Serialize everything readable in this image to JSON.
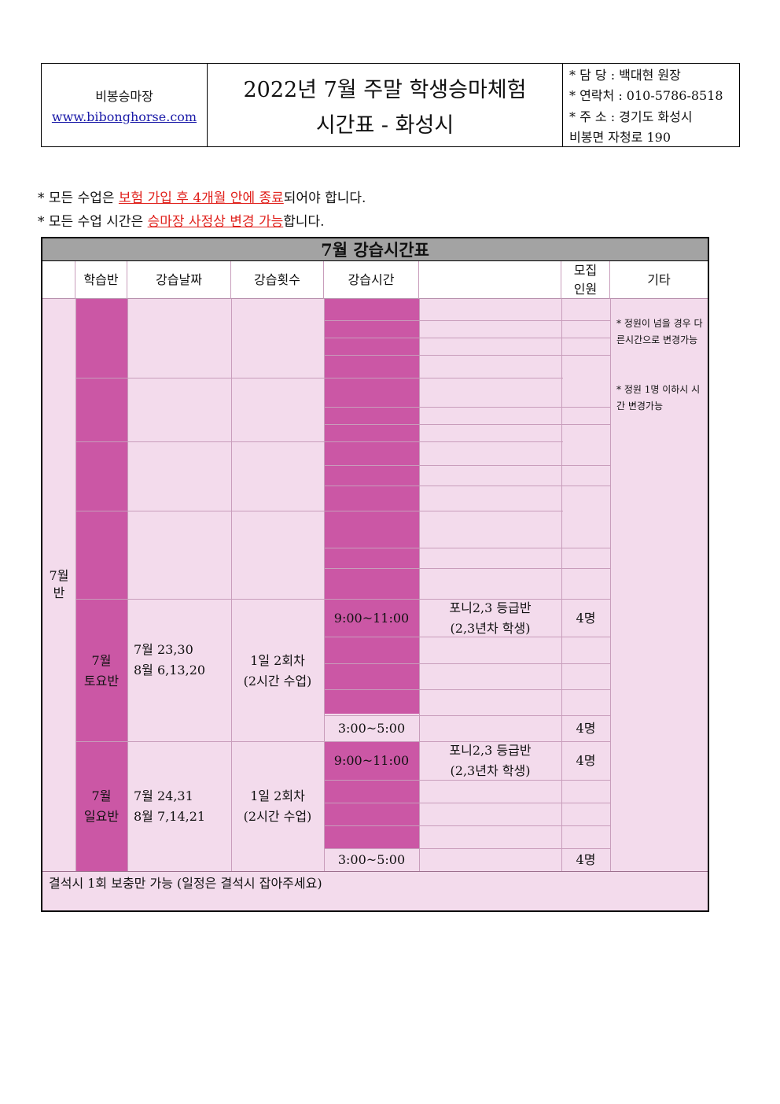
{
  "header": {
    "org_name": "비봉승마장",
    "website": "www.bibonghorse.com",
    "title_line1": "2022년 7월 주말 학생승마체험",
    "title_line2": "시간표 - 화성시",
    "contact_manager": "* 담  당 : 백대현 원장",
    "contact_phone": "* 연락처 : 010-5786-8518",
    "contact_address1": "* 주  소 : 경기도 화성시",
    "contact_address2": "비봉면 자청로 190"
  },
  "notices": [
    {
      "prefix": "* 모든 수업은 ",
      "highlight": "보험 가입 후 4개월 안에 종료",
      "suffix": "되어야 합니다."
    },
    {
      "prefix": "* 모든 수업 시간은 ",
      "highlight": "승마장 사정상 변경 가능",
      "suffix": "합니다."
    }
  ],
  "schedule": {
    "title": "7월 강습시간표",
    "columns": {
      "class": "학습반",
      "date": "강습날짜",
      "count": "강습횟수",
      "time": "강습시간",
      "capacity_line1": "모집",
      "capacity_line2": "인원",
      "etc": "기타"
    },
    "month_label_line1": "7월",
    "month_label_line2": "반",
    "etc_note1": "* 정원이 넘을 경우 다른시간으로 변경가능",
    "etc_note2": "* 정원 1명 이하시 시간 변경가능",
    "saturday": {
      "class_line1": "7월",
      "class_line2": "토요반",
      "dates_line1": "7월 23,30",
      "dates_line2": "8월 6,13,20",
      "count_line1": "1일 2회차",
      "count_line2": "(2시간 수업)",
      "time_am": "9:00~11:00",
      "level_line1": "포니2,3 등급반",
      "level_line2": "(2,3년차 학생)",
      "capacity_am": "4명",
      "time_pm": "3:00~5:00",
      "capacity_pm": "4명"
    },
    "sunday": {
      "class_line1": "7월",
      "class_line2": "일요반",
      "dates_line1": "7월 24,31",
      "dates_line2": "8월 7,14,21",
      "count_line1": "1일 2회차",
      "count_line2": "(2시간 수업)",
      "time_am": "9:00~11:00",
      "level_line1": "포니2,3 등급반",
      "level_line2": "(2,3년차 학생)",
      "capacity_am": "4명",
      "time_pm": "3:00~5:00",
      "capacity_pm": "4명"
    },
    "footer_note": "결석시 1회 보충만 가능 (일정은 결석시 잡아주세요)"
  },
  "colors": {
    "magenta": "#cb57a5",
    "pink_bg": "#f3dbec",
    "title_gray": "#a3a3a3",
    "highlight_red": "#e0201b",
    "link_blue": "#1a1aa8"
  }
}
